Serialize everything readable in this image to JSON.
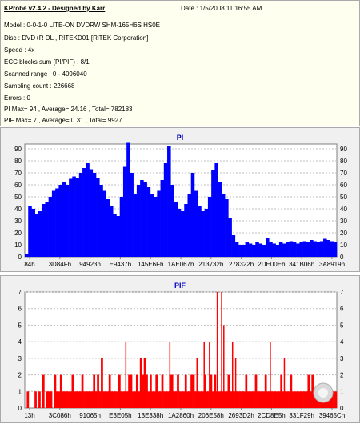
{
  "info": {
    "title": "KProbe v2.4.2 - Designed by Karr",
    "date": "Date : 1/5/2008 11:16:55 AM",
    "lines": [
      "Model : 0-0-1-0 LITE-ON DVDRW SHM-165H6S HS0E",
      "Disc : DVD+R DL , RITEKD01 [RiTEK Corporation]",
      "Speed : 4x",
      "ECC blocks sum (PI/PIF) : 8/1",
      "Scanned range : 0 - 4096040",
      "Sampling count : 226668",
      "Errors : 0",
      "PI Max= 94 , Average= 24.16 , Total= 782183",
      "PIF Max= 7 , Average= 0.31 , Total= 9927"
    ]
  },
  "colors": {
    "pi": "#0000ff",
    "pif": "#ff0000",
    "title": "#0000c0"
  },
  "chart_data": [
    {
      "type": "area",
      "title": "PI",
      "x_tick_labels": [
        "84h",
        "3D84Fh",
        "94923h",
        "E9437h",
        "145E6Fh",
        "1AE067h",
        "213732h",
        "278322h",
        "2DE00Eh",
        "341B06h",
        "3A8919h"
      ],
      "y_ticks": [
        0,
        10,
        20,
        30,
        40,
        50,
        60,
        70,
        80,
        90
      ],
      "ylim": [
        0,
        94
      ],
      "grid": true,
      "series": [
        {
          "values": [
            2,
            42,
            40,
            36,
            38,
            44,
            46,
            50,
            55,
            57,
            60,
            62,
            60,
            65,
            67,
            66,
            70,
            74,
            78,
            73,
            70,
            66,
            60,
            55,
            48,
            42,
            36,
            34,
            50,
            75,
            95,
            70,
            52,
            60,
            64,
            62,
            58,
            52,
            50,
            55,
            64,
            78,
            92,
            60,
            46,
            40,
            38,
            44,
            52,
            70,
            55,
            42,
            38,
            40,
            50,
            72,
            78,
            62,
            52,
            48,
            32,
            18,
            12,
            10,
            10,
            12,
            11,
            10,
            12,
            11,
            10,
            16,
            12,
            11,
            10,
            12,
            11,
            12,
            13,
            12,
            11,
            12,
            13,
            12,
            14,
            13,
            12,
            13,
            15,
            14,
            13,
            12
          ]
        }
      ]
    },
    {
      "type": "bar",
      "title": "PIF",
      "x_tick_labels": [
        "13h",
        "3C086h",
        "91065h",
        "E3E05h",
        "13E338h",
        "1A2860h",
        "206E58h",
        "2693D2h",
        "2CD8E5h",
        "331F29h",
        "39465Ch"
      ],
      "y_ticks": [
        0,
        1,
        2,
        3,
        4,
        5,
        6,
        7
      ],
      "ylim": [
        0,
        7
      ],
      "grid": true,
      "series": [
        {
          "values": [
            0,
            1,
            0,
            0,
            0,
            1,
            0,
            1,
            0,
            2,
            0,
            1,
            1,
            1,
            0,
            2,
            1,
            1,
            2,
            1,
            1,
            1,
            1,
            1,
            2,
            1,
            1,
            1,
            1,
            2,
            1,
            1,
            1,
            1,
            1,
            2,
            1,
            2,
            1,
            3,
            1,
            1,
            1,
            2,
            1,
            1,
            1,
            1,
            2,
            1,
            1,
            1,
            1,
            2,
            2,
            1,
            1,
            2,
            1,
            3,
            2,
            3,
            2,
            1,
            2,
            1,
            1,
            2,
            1,
            1,
            2,
            1,
            1,
            1,
            2,
            2,
            1,
            1,
            2,
            1,
            1,
            1,
            2,
            1,
            1,
            2,
            2,
            1,
            1,
            1,
            1,
            1,
            2,
            1,
            1,
            2,
            1,
            2,
            1,
            1,
            1,
            1,
            1,
            1,
            2,
            1,
            1,
            1,
            1,
            1,
            1,
            1,
            1,
            2,
            1,
            1,
            1,
            1,
            2,
            1,
            1,
            1,
            1,
            2,
            1,
            1,
            1,
            1,
            1,
            1,
            1,
            2,
            1,
            1,
            1,
            1,
            2,
            1,
            1,
            1,
            1,
            1,
            1,
            1,
            1,
            2,
            1,
            2,
            1,
            1,
            1,
            1,
            1,
            1,
            1,
            1,
            1,
            1,
            1,
            1
          ],
          "spikes": [
            {
              "pos": 0.322,
              "value": 4
            },
            {
              "pos": 0.463,
              "value": 4
            },
            {
              "pos": 0.55,
              "value": 3
            },
            {
              "pos": 0.573,
              "value": 4
            },
            {
              "pos": 0.59,
              "value": 4
            },
            {
              "pos": 0.615,
              "value": 7
            },
            {
              "pos": 0.629,
              "value": 7
            },
            {
              "pos": 0.636,
              "value": 5
            },
            {
              "pos": 0.664,
              "value": 4
            },
            {
              "pos": 0.674,
              "value": 3
            },
            {
              "pos": 0.785,
              "value": 4
            },
            {
              "pos": 0.83,
              "value": 3
            }
          ]
        }
      ]
    }
  ]
}
